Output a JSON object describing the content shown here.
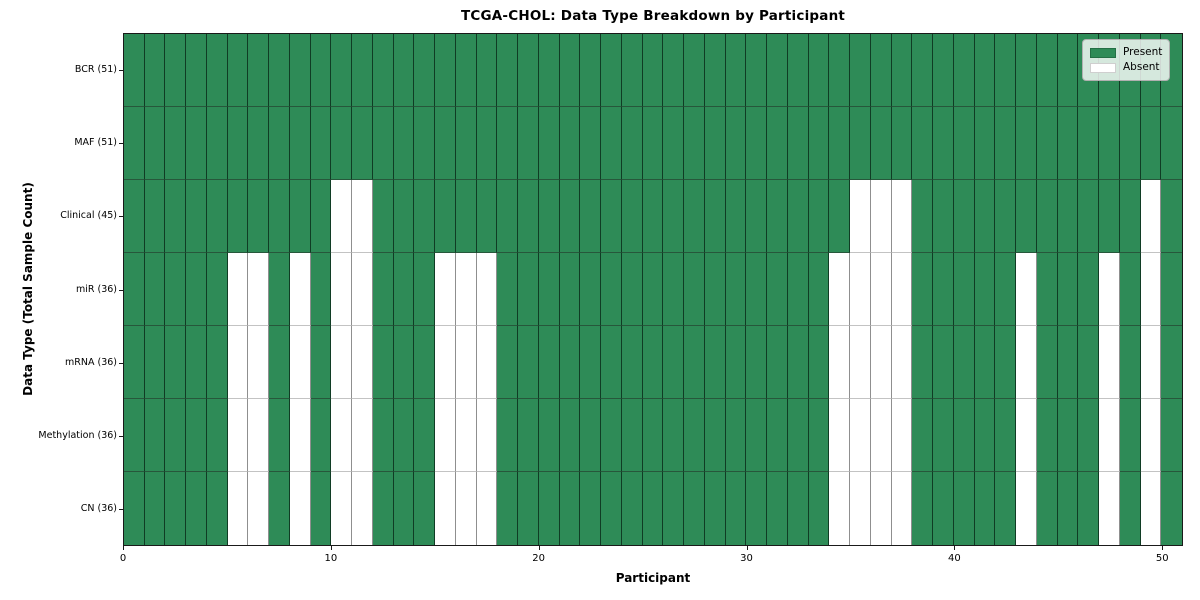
{
  "title": "TCGA-CHOL: Data Type Breakdown by Participant",
  "axes": {
    "xlabel": "Participant",
    "ylabel": "Data Type (Total Sample Count)",
    "x_ticks": [
      0,
      10,
      20,
      30,
      40,
      50
    ],
    "x_range": [
      0,
      51
    ]
  },
  "legend": {
    "items": [
      {
        "label": "Present",
        "key": "present",
        "color": "#2e8b57"
      },
      {
        "label": "Absent",
        "key": "absent",
        "color": "#ffffff"
      }
    ],
    "position": "upper-right"
  },
  "chart_data": {
    "type": "heatmap",
    "title": "TCGA-CHOL: Data Type Breakdown by Participant",
    "xlabel": "Participant",
    "ylabel": "Data Type (Total Sample Count)",
    "n_participants": 51,
    "x_tick_labels": [
      "0",
      "10",
      "20",
      "30",
      "40",
      "50"
    ],
    "colors": {
      "present": "#2e8b57",
      "absent": "#ffffff"
    },
    "grid": true,
    "rows": [
      {
        "label": "BCR (51)",
        "name": "BCR",
        "present_count": 51,
        "absent_participants": []
      },
      {
        "label": "MAF (51)",
        "name": "MAF",
        "present_count": 51,
        "absent_participants": []
      },
      {
        "label": "Clinical (45)",
        "name": "Clinical",
        "present_count": 45,
        "absent_participants": [
          10,
          11,
          35,
          36,
          37,
          49
        ]
      },
      {
        "label": "miR (36)",
        "name": "miR",
        "present_count": 36,
        "absent_participants": [
          5,
          6,
          8,
          10,
          11,
          15,
          16,
          17,
          34,
          35,
          36,
          37,
          43,
          47,
          49
        ]
      },
      {
        "label": "mRNA (36)",
        "name": "mRNA",
        "present_count": 36,
        "absent_participants": [
          5,
          6,
          8,
          10,
          11,
          15,
          16,
          17,
          34,
          35,
          36,
          37,
          43,
          47,
          49
        ]
      },
      {
        "label": "Methylation (36)",
        "name": "Methylation",
        "present_count": 36,
        "absent_participants": [
          5,
          6,
          8,
          10,
          11,
          15,
          16,
          17,
          34,
          35,
          36,
          37,
          43,
          47,
          49
        ]
      },
      {
        "label": "CN (36)",
        "name": "CN",
        "present_count": 36,
        "absent_participants": [
          5,
          6,
          8,
          10,
          11,
          15,
          16,
          17,
          34,
          35,
          36,
          37,
          43,
          47,
          49
        ]
      }
    ]
  }
}
